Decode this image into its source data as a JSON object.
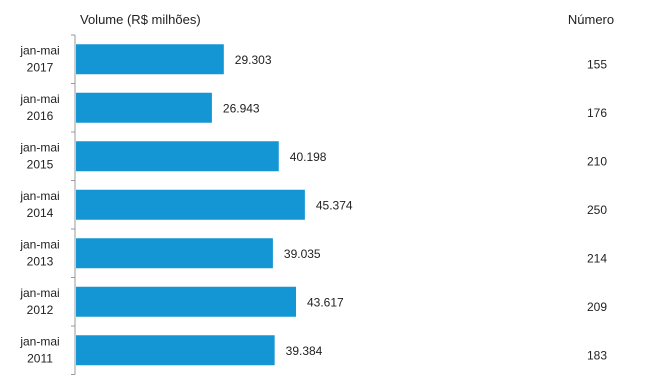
{
  "chart_data": {
    "type": "bar",
    "orientation": "horizontal",
    "title": "Volume (R$ milhões)",
    "secondary_header": "Número",
    "categories": [
      [
        "jan-mai",
        "2017"
      ],
      [
        "jan-mai",
        "2016"
      ],
      [
        "jan-mai",
        "2015"
      ],
      [
        "jan-mai",
        "2014"
      ],
      [
        "jan-mai",
        "2013"
      ],
      [
        "jan-mai",
        "2012"
      ],
      [
        "jan-mai",
        "2011"
      ]
    ],
    "values": [
      29303,
      26943,
      40198,
      45374,
      39035,
      43617,
      39384
    ],
    "value_labels": [
      "29.303",
      "26.943",
      "40.198",
      "45.374",
      "39.035",
      "43.617",
      "39.384"
    ],
    "counts": [
      "155",
      "176",
      "210",
      "250",
      "214",
      "209",
      "183"
    ],
    "xlim": [
      0,
      113000
    ],
    "grid": false,
    "bar_color": "#1596d4"
  }
}
